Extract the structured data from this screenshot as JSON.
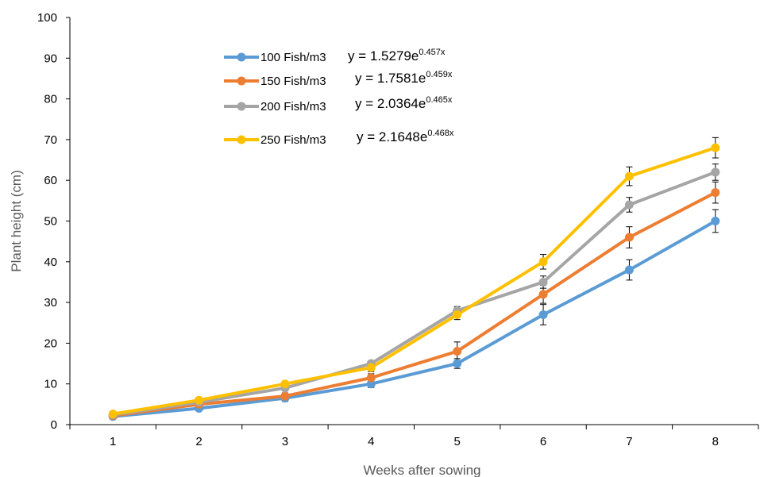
{
  "chart_data": {
    "type": "line",
    "title": "",
    "xlabel": "Weeks after sowing",
    "ylabel": "Plant height (cm)",
    "x": [
      1,
      2,
      3,
      4,
      5,
      6,
      7,
      8
    ],
    "xlim": [
      0.5,
      8.5
    ],
    "ylim": [
      0,
      100
    ],
    "yticks": [
      0,
      10,
      20,
      30,
      40,
      50,
      60,
      70,
      80,
      90,
      100
    ],
    "grid": false,
    "legend_position": "top-left",
    "series": [
      {
        "name": "100 Fish/m3",
        "color": "#5B9BD5",
        "values": [
          2,
          4,
          6.5,
          10,
          15,
          27,
          38,
          50
        ],
        "error": [
          0.3,
          0.4,
          0.8,
          0.9,
          1.2,
          2.5,
          2.5,
          2.8
        ],
        "equation": {
          "prefix": "y = 1.5279e",
          "exponent": "0.457x"
        }
      },
      {
        "name": "150 Fish/m3",
        "color": "#ED7D31",
        "values": [
          2.2,
          5,
          7,
          11.5,
          18,
          32,
          46,
          57
        ],
        "error": [
          0.3,
          0.5,
          0.8,
          1.0,
          2.3,
          2.2,
          2.6,
          2.6
        ],
        "equation": {
          "prefix": "y = 1.7581e",
          "exponent": "0.459x"
        }
      },
      {
        "name": "200 Fish/m3",
        "color": "#A5A5A5",
        "values": [
          2.4,
          5.5,
          9,
          15,
          28,
          35,
          54,
          62
        ],
        "error": [
          0.3,
          0.4,
          0.7,
          0.6,
          1.0,
          1.5,
          1.8,
          2.0
        ],
        "equation": {
          "prefix": "y = 2.0364e",
          "exponent": "0.465x"
        }
      },
      {
        "name": "250 Fish/m3",
        "color": "#FFC000",
        "values": [
          2.6,
          6,
          10,
          14,
          27,
          40,
          61,
          68
        ],
        "error": [
          0.3,
          0.4,
          0.6,
          1.0,
          1.2,
          1.8,
          2.3,
          2.5
        ],
        "equation": {
          "prefix": "y = 2.1648e",
          "exponent": "0.468x"
        }
      }
    ]
  }
}
